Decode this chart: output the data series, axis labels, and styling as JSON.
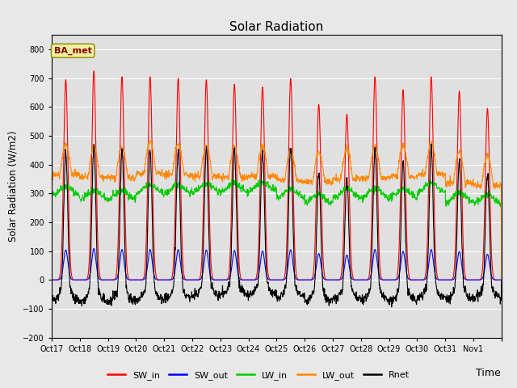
{
  "title": "Solar Radiation",
  "xlabel": "Time",
  "ylabel": "Solar Radiation (W/m2)",
  "ylim": [
    -200,
    850
  ],
  "yticks": [
    -200,
    -100,
    0,
    100,
    200,
    300,
    400,
    500,
    600,
    700,
    800
  ],
  "fig_bg_color": "#e8e8e8",
  "plot_bg_color": "#e0e0e0",
  "grid_color": "#ffffff",
  "annotation_text": "BA_met",
  "annotation_color": "#8b0000",
  "annotation_bg": "#f0f0a0",
  "annotation_edge": "#888800",
  "line_colors": {
    "SW_in": "#ff0000",
    "SW_out": "#0000ff",
    "LW_in": "#00cc00",
    "LW_out": "#ff8800",
    "Rnet": "#000000"
  },
  "n_days": 16,
  "xtick_labels": [
    "Oct 17",
    "Oct 18",
    "Oct 19",
    "Oct 20",
    "Oct 21",
    "Oct 22",
    "Oct 23",
    "Oct 24",
    "Oct 25",
    "Oct 26",
    "Oct 27",
    "Oct 28",
    "Oct 29",
    "Oct 30",
    "Oct 31",
    "Nov 1"
  ],
  "legend_entries": [
    "SW_in",
    "SW_out",
    "LW_in",
    "LW_out",
    "Rnet"
  ]
}
